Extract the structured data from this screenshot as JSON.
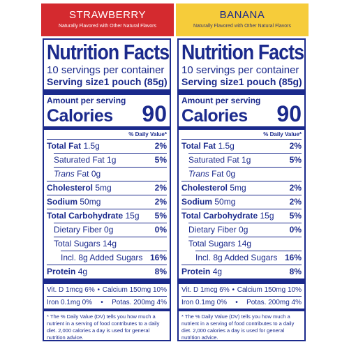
{
  "panels": [
    {
      "flavor": "STRAWBERRY",
      "flavored": "Naturally Flavored with Other Natural Flavors",
      "title": "Nutrition Facts",
      "servings": "10 servings per container",
      "serving_label": "Serving size",
      "serving_value": "1 pouch (85g)",
      "amount_per": "Amount per serving",
      "calories_label": "Calories",
      "calories_value": "90",
      "dv_header": "% Daily Value*",
      "total_fat_label": "Total Fat",
      "total_fat_amt": "1.5g",
      "total_fat_pct": "2%",
      "sat_fat_label": "Saturated Fat 1g",
      "sat_fat_pct": "5%",
      "trans_fat_label": "Trans",
      "trans_fat_rest": "Fat 0g",
      "cholesterol_label": "Cholesterol",
      "cholesterol_amt": "5mg",
      "cholesterol_pct": "2%",
      "sodium_label": "Sodium",
      "sodium_amt": "50mg",
      "sodium_pct": "2%",
      "carb_label": "Total Carbohydrate",
      "carb_amt": "15g",
      "carb_pct": "5%",
      "fiber_label": "Dietary Fiber 0g",
      "fiber_pct": "0%",
      "sugars_label": "Total Sugars 14g",
      "added_label": "Incl. 8g Added Sugars",
      "added_pct": "16%",
      "protein_label": "Protein",
      "protein_amt": "4g",
      "protein_pct": "8%",
      "micro1_left": "Vit. D 1mcg 6%",
      "micro1_sep": "•",
      "micro1_right": "Calcium 150mg 10%",
      "micro2_left": "Iron 0.1mg 0%",
      "micro2_sep": "•",
      "micro2_right": "Potas. 200mg 4%",
      "note": "* The % Daily Value (DV) tells you how much a nutrient in a serving of food contributes to a daily diet. 2,000 calories a day is used for general nutrition advice."
    },
    {
      "flavor": "BANANA",
      "flavored": "Naturally Flavored with Other Natural Flavors",
      "title": "Nutrition Facts",
      "servings": "10 servings per container",
      "serving_label": "Serving size",
      "serving_value": "1 pouch (85g)",
      "amount_per": "Amount per serving",
      "calories_label": "Calories",
      "calories_value": "90",
      "dv_header": "% Daily Value*",
      "total_fat_label": "Total Fat",
      "total_fat_amt": "1.5g",
      "total_fat_pct": "2%",
      "sat_fat_label": "Saturated Fat 1g",
      "sat_fat_pct": "5%",
      "trans_fat_label": "Trans",
      "trans_fat_rest": "Fat 0g",
      "cholesterol_label": "Cholesterol",
      "cholesterol_amt": "5mg",
      "cholesterol_pct": "2%",
      "sodium_label": "Sodium",
      "sodium_amt": "50mg",
      "sodium_pct": "2%",
      "carb_label": "Total Carbohydrate",
      "carb_amt": "15g",
      "carb_pct": "5%",
      "fiber_label": "Dietary Fiber 0g",
      "fiber_pct": "0%",
      "sugars_label": "Total Sugars 14g",
      "added_label": "Incl. 8g Added Sugars",
      "added_pct": "16%",
      "protein_label": "Protein",
      "protein_amt": "4g",
      "protein_pct": "8%",
      "micro1_left": "Vit. D 1mcg 6%",
      "micro1_sep": "•",
      "micro1_right": "Calcium 150mg 10%",
      "micro2_left": "Iron 0.1mg 0%",
      "micro2_sep": "•",
      "micro2_right": "Potas. 200mg 4%",
      "note": "* The % Daily Value (DV) tells you how much a nutrient in a serving of food contributes to a daily diet. 2,000 calories a day is used for general nutrition advice."
    }
  ],
  "colors": {
    "label_blue": "#1b2a8c",
    "strawberry_red": "#d42a2f",
    "banana_yellow": "#f6cc3a"
  }
}
